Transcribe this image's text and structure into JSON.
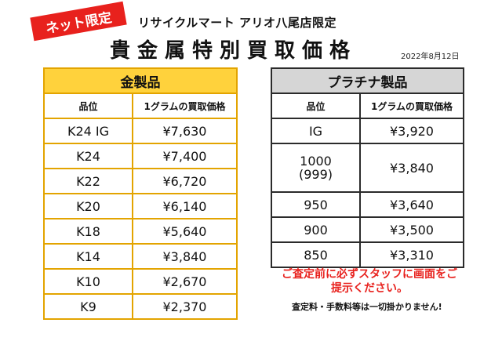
{
  "header": {
    "badge": "ネット限定",
    "store_name": "リサイクルマート アリオ八尾店限定",
    "title": "貴金属特別買取価格",
    "date": "2022年8月12日"
  },
  "gold": {
    "title": "金製品",
    "col_grade": "品位",
    "col_price": "1グラムの買取価格",
    "rows": [
      {
        "grade": "K24 IG",
        "price": "¥7,630"
      },
      {
        "grade": "K24",
        "price": "¥7,400"
      },
      {
        "grade": "K22",
        "price": "¥6,720"
      },
      {
        "grade": "K20",
        "price": "¥6,140"
      },
      {
        "grade": "K18",
        "price": "¥5,640"
      },
      {
        "grade": "K14",
        "price": "¥3,840"
      },
      {
        "grade": "K10",
        "price": "¥2,670"
      },
      {
        "grade": "K9",
        "price": "¥2,370"
      }
    ]
  },
  "platinum": {
    "title": "プラチナ製品",
    "col_grade": "品位",
    "col_price": "1グラムの買取価格",
    "rows": [
      {
        "grade": "IG",
        "price": "¥3,920"
      },
      {
        "grade": "1000",
        "grade_sub": "(999)",
        "price": "¥3,840"
      },
      {
        "grade": "950",
        "price": "¥3,640"
      },
      {
        "grade": "900",
        "price": "¥3,500"
      },
      {
        "grade": "850",
        "price": "¥3,310"
      }
    ]
  },
  "notice": {
    "line1": "ご査定前に必ずスタッフに画面をご",
    "line2": "提示ください。"
  },
  "fee_note": "査定料・手数料等は一切掛かりません!"
}
